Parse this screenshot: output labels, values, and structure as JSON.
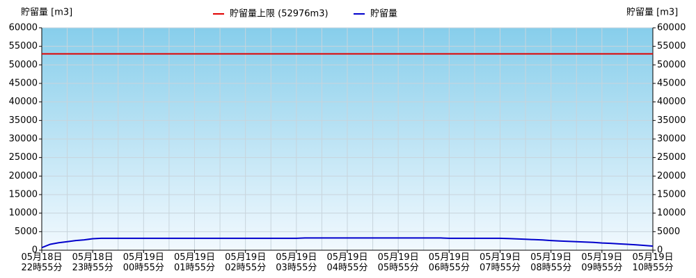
{
  "chart_data": {
    "type": "line",
    "ylabel": "貯留量 [m3]",
    "y2label": "貯留量 [m3]",
    "threshold": {
      "name": "貯留量上限 (52976m3)",
      "value": 52976,
      "color": "#e00000"
    },
    "categories": [
      "05月18日\n22時55分",
      null,
      null,
      null,
      null,
      null,
      "05月18日\n23時55分",
      null,
      null,
      null,
      null,
      null,
      "05月19日\n00時55分",
      null,
      null,
      null,
      null,
      null,
      "05月19日\n01時55分",
      null,
      null,
      null,
      null,
      null,
      "05月19日\n02時55分",
      null,
      null,
      null,
      null,
      null,
      "05月19日\n03時55分",
      null,
      null,
      null,
      null,
      null,
      "05月19日\n04時55分",
      null,
      null,
      null,
      null,
      null,
      "05月19日\n05時55分",
      null,
      null,
      null,
      null,
      null,
      "05月19日\n06時55分",
      null,
      null,
      null,
      null,
      null,
      "05月19日\n07時55分",
      null,
      null,
      null,
      null,
      null,
      "05月19日\n08時55分",
      null,
      null,
      null,
      null,
      null,
      "05月19日\n09時55分",
      null,
      null,
      null,
      null,
      null,
      "05月19日\n10時55分"
    ],
    "series": [
      {
        "name": "貯留量",
        "color": "#0000cc",
        "values": [
          700,
          1600,
          2000,
          2300,
          2600,
          2800,
          3100,
          3200,
          3200,
          3200,
          3200,
          3200,
          3200,
          3200,
          3200,
          3200,
          3200,
          3200,
          3200,
          3200,
          3200,
          3200,
          3200,
          3200,
          3200,
          3200,
          3200,
          3200,
          3200,
          3200,
          3200,
          3300,
          3300,
          3300,
          3300,
          3300,
          3300,
          3300,
          3300,
          3300,
          3300,
          3300,
          3300,
          3300,
          3300,
          3300,
          3300,
          3300,
          3200,
          3200,
          3200,
          3200,
          3200,
          3200,
          3200,
          3150,
          3050,
          2950,
          2850,
          2750,
          2600,
          2500,
          2400,
          2300,
          2200,
          2100,
          1950,
          1850,
          1700,
          1600,
          1450,
          1300,
          1100
        ]
      }
    ],
    "ylim": [
      0,
      60000
    ],
    "yticks": [
      0,
      5000,
      10000,
      15000,
      20000,
      25000,
      30000,
      35000,
      40000,
      45000,
      50000,
      55000,
      60000
    ],
    "y2lim": [
      0,
      60000
    ],
    "y2ticks": [
      0,
      5000,
      10000,
      15000,
      20000,
      25000,
      30000,
      35000,
      40000,
      45000,
      50000,
      55000,
      60000
    ],
    "grid": true
  }
}
